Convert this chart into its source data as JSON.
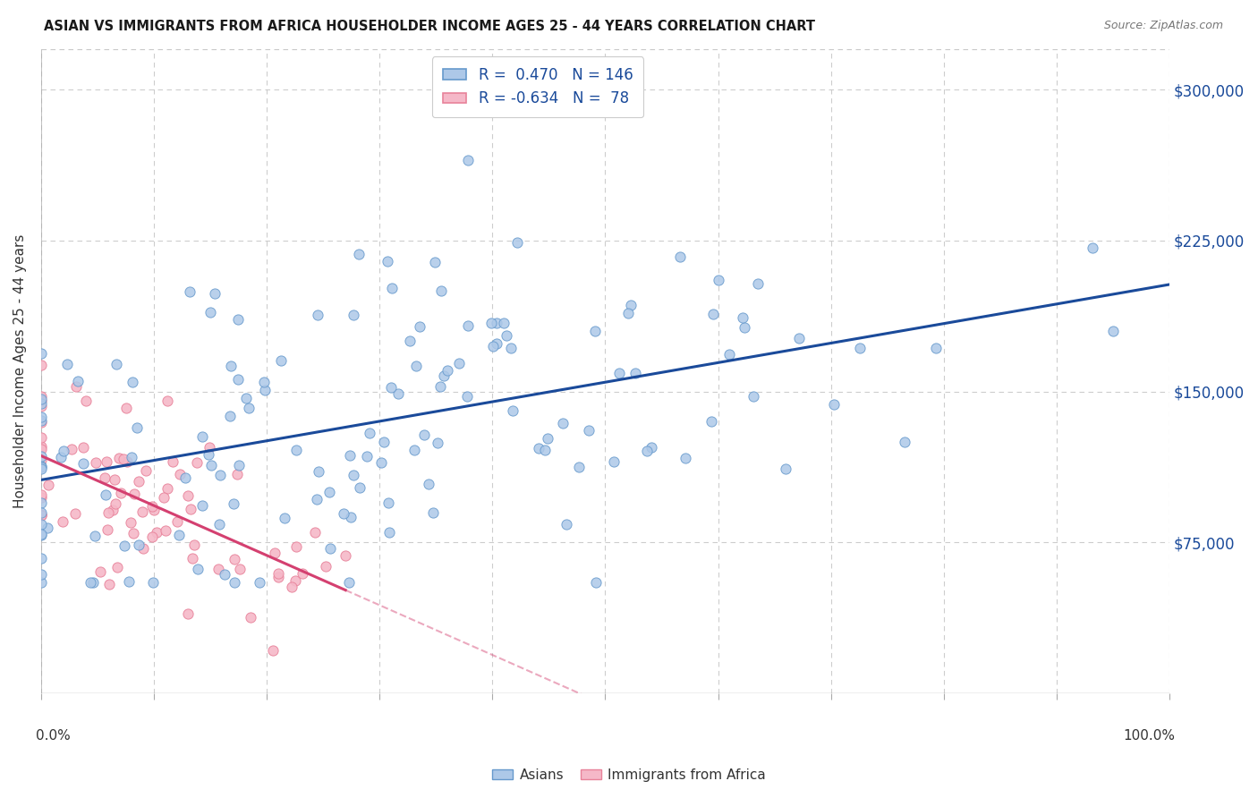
{
  "title": "ASIAN VS IMMIGRANTS FROM AFRICA HOUSEHOLDER INCOME AGES 25 - 44 YEARS CORRELATION CHART",
  "source": "Source: ZipAtlas.com",
  "ylabel": "Householder Income Ages 25 - 44 years",
  "ytick_values": [
    75000,
    150000,
    225000,
    300000
  ],
  "blue_scatter_color": "#adc8e8",
  "blue_edge_color": "#6699cc",
  "blue_line_color": "#1a4a9a",
  "pink_scatter_color": "#f5b8c8",
  "pink_edge_color": "#e8829a",
  "pink_line_color": "#d44070",
  "xmin": 0.0,
  "xmax": 100.0,
  "ymin": 0,
  "ymax": 320000,
  "background_color": "#ffffff",
  "grid_color": "#c8c8c8",
  "legend_line1": "R =  0.470   N = 146",
  "legend_line2": "R = -0.634   N =  78",
  "legend_color": "#1a4a9a",
  "asian_n": 146,
  "africa_n": 78,
  "asian_R": 0.47,
  "africa_R": -0.634,
  "asian_seed": 12,
  "africa_seed": 7
}
